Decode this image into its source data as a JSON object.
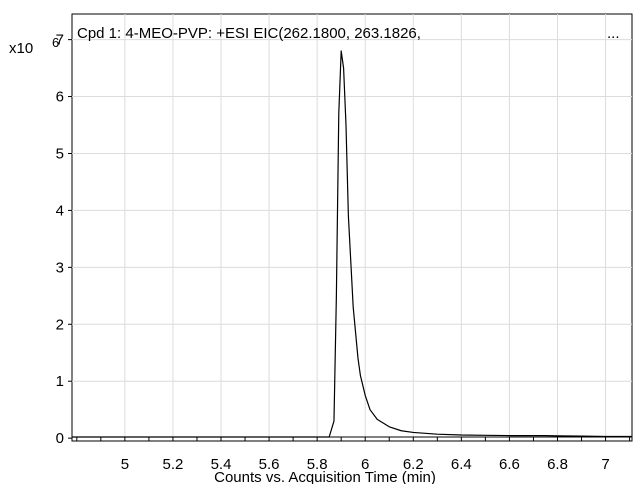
{
  "chart_data": {
    "type": "line",
    "title": "Cpd 1: 4-MEO-PVP: +ESI EIC(262.1800, 263.1826,",
    "title_ellipsis": "...",
    "xlabel": "Counts vs. Acquisition Time (min)",
    "y_multiplier_base": "x10",
    "y_multiplier_exp": "6",
    "xlim": [
      4.78,
      7.11
    ],
    "ylim": [
      -0.05,
      7.45
    ],
    "x_ticks": [
      5,
      5.2,
      5.4,
      5.6,
      5.8,
      6,
      6.2,
      6.4,
      6.6,
      6.8,
      7
    ],
    "x_tick_labels": [
      "5",
      "5.2",
      "5.4",
      "5.6",
      "5.8",
      "6",
      "6.2",
      "6.4",
      "6.6",
      "6.8",
      "7"
    ],
    "y_ticks": [
      0,
      1,
      2,
      3,
      4,
      5,
      6,
      7
    ],
    "y_tick_labels": [
      "0",
      "1",
      "2",
      "3",
      "4",
      "5",
      "6",
      "7"
    ],
    "grid": true,
    "line_color": "#000000",
    "grid_color": "#dcdcdc",
    "series": [
      {
        "x": [
          4.78,
          5.0,
          5.5,
          5.85,
          5.87,
          5.88,
          5.89,
          5.9,
          5.91,
          5.92,
          5.93,
          5.95,
          5.97,
          5.98,
          6.0,
          6.02,
          6.05,
          6.1,
          6.15,
          6.2,
          6.3,
          6.4,
          6.5,
          6.6,
          6.7,
          6.75,
          6.8,
          6.9,
          7.0,
          7.11
        ],
        "y": [
          0.02,
          0.02,
          0.02,
          0.02,
          0.3,
          2.5,
          5.7,
          6.8,
          6.5,
          5.5,
          3.9,
          2.3,
          1.4,
          1.1,
          0.75,
          0.5,
          0.33,
          0.2,
          0.13,
          0.1,
          0.07,
          0.055,
          0.05,
          0.045,
          0.045,
          0.045,
          0.04,
          0.035,
          0.03,
          0.03
        ]
      }
    ]
  }
}
